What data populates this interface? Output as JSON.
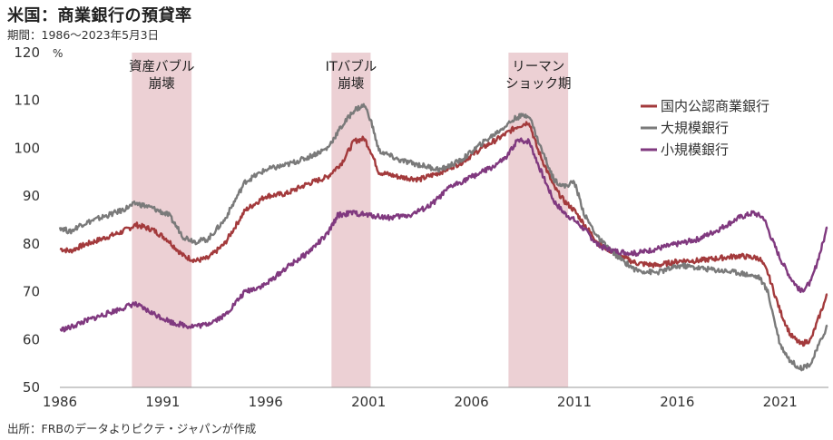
{
  "header": {
    "title": "米国：商業銀行の預貸率",
    "subtitle": "期間：1986～2023年5月3日",
    "source": "出所：FRBのデータよりピクテ・ジャパンが作成"
  },
  "chart_data": {
    "type": "line",
    "title": "米国：商業銀行の預貸率",
    "ylabel": "%",
    "xlim": [
      1986,
      2023.35
    ],
    "ylim": [
      50,
      120
    ],
    "yticks": [
      50,
      60,
      70,
      80,
      90,
      100,
      110,
      120
    ],
    "xticks": [
      1986,
      1991,
      1996,
      2001,
      2006,
      2011,
      2016,
      2021
    ],
    "grid": false,
    "legend_position": "right",
    "band_color": "#ecd0d4",
    "bands": [
      {
        "start": 1989.5,
        "end": 1992.4,
        "label_lines": [
          "資産バブル",
          "崩壊"
        ]
      },
      {
        "start": 1999.2,
        "end": 2001.1,
        "label_lines": [
          "ITバブル",
          "崩壊"
        ]
      },
      {
        "start": 2007.8,
        "end": 2010.7,
        "label_lines": [
          "リーマン",
          "ショック期"
        ]
      }
    ],
    "series": [
      {
        "name": "国内公認商業銀行",
        "color": "#a33a3c",
        "points": [
          [
            1986,
            79
          ],
          [
            1986.5,
            78.5
          ],
          [
            1987,
            79.5
          ],
          [
            1988,
            81
          ],
          [
            1989,
            82.5
          ],
          [
            1989.7,
            84
          ],
          [
            1990.5,
            83
          ],
          [
            1991.2,
            81
          ],
          [
            1992,
            77.5
          ],
          [
            1992.6,
            76.5
          ],
          [
            1993.2,
            77
          ],
          [
            1994,
            80
          ],
          [
            1995,
            87
          ],
          [
            1996,
            90
          ],
          [
            1997,
            90.5
          ],
          [
            1998,
            92.5
          ],
          [
            1999,
            94
          ],
          [
            1999.7,
            97
          ],
          [
            2000.3,
            101.5
          ],
          [
            2000.8,
            102
          ],
          [
            2001.1,
            99.5
          ],
          [
            2001.5,
            95
          ],
          [
            2002.5,
            94
          ],
          [
            2003.5,
            93.5
          ],
          [
            2004.5,
            95
          ],
          [
            2005.5,
            97
          ],
          [
            2006.5,
            100
          ],
          [
            2007.3,
            102
          ],
          [
            2008.2,
            104.5
          ],
          [
            2008.8,
            105.5
          ],
          [
            2009.2,
            100
          ],
          [
            2010,
            92
          ],
          [
            2010.5,
            89
          ],
          [
            2011,
            87
          ],
          [
            2011.5,
            84
          ],
          [
            2012.2,
            80
          ],
          [
            2013.2,
            77.5
          ],
          [
            2014,
            76
          ],
          [
            2015,
            75.5
          ],
          [
            2016.2,
            76.5
          ],
          [
            2017,
            76.5
          ],
          [
            2018,
            77
          ],
          [
            2019,
            77.5
          ],
          [
            2020,
            77
          ],
          [
            2020.4,
            74
          ],
          [
            2021,
            66
          ],
          [
            2021.5,
            61
          ],
          [
            2022,
            59
          ],
          [
            2022.5,
            60
          ],
          [
            2023,
            66
          ],
          [
            2023.3,
            69.5
          ]
        ]
      },
      {
        "name": "大規模銀行",
        "color": "#7a7a7a",
        "points": [
          [
            1986,
            83.5
          ],
          [
            1986.5,
            82.5
          ],
          [
            1987,
            84
          ],
          [
            1988,
            85.5
          ],
          [
            1989,
            87
          ],
          [
            1989.7,
            88.5
          ],
          [
            1990.5,
            87.5
          ],
          [
            1991.3,
            86
          ],
          [
            1992,
            81.5
          ],
          [
            1992.6,
            80.5
          ],
          [
            1993.2,
            81
          ],
          [
            1994,
            85
          ],
          [
            1995,
            93
          ],
          [
            1996,
            95.5
          ],
          [
            1997,
            96.5
          ],
          [
            1998,
            98
          ],
          [
            1999,
            100
          ],
          [
            1999.6,
            104
          ],
          [
            2000.3,
            108
          ],
          [
            2000.8,
            109
          ],
          [
            2001.1,
            106
          ],
          [
            2001.5,
            99.5
          ],
          [
            2002.5,
            97.5
          ],
          [
            2003.5,
            96.5
          ],
          [
            2004.5,
            95.5
          ],
          [
            2005.5,
            97.5
          ],
          [
            2006.5,
            101
          ],
          [
            2007.3,
            103.5
          ],
          [
            2008.2,
            106.5
          ],
          [
            2008.8,
            107
          ],
          [
            2009.2,
            102
          ],
          [
            2010,
            93.5
          ],
          [
            2010.5,
            92
          ],
          [
            2011,
            93
          ],
          [
            2011.5,
            86
          ],
          [
            2012.2,
            81
          ],
          [
            2013.2,
            77
          ],
          [
            2014,
            74.5
          ],
          [
            2015,
            74
          ],
          [
            2016.2,
            75.5
          ],
          [
            2017,
            75
          ],
          [
            2018,
            74.5
          ],
          [
            2019,
            74
          ],
          [
            2020,
            73
          ],
          [
            2020.4,
            70
          ],
          [
            2021,
            59
          ],
          [
            2021.5,
            55.5
          ],
          [
            2022,
            54
          ],
          [
            2022.5,
            55
          ],
          [
            2023,
            60
          ],
          [
            2023.3,
            63
          ]
        ]
      },
      {
        "name": "小規模銀行",
        "color": "#80397f",
        "points": [
          [
            1986,
            62
          ],
          [
            1986.5,
            62.5
          ],
          [
            1987,
            63.5
          ],
          [
            1988,
            65
          ],
          [
            1989,
            66.5
          ],
          [
            1989.6,
            67.5
          ],
          [
            1990.5,
            65.5
          ],
          [
            1991.5,
            63.5
          ],
          [
            1992.3,
            62.8
          ],
          [
            1993,
            63
          ],
          [
            1994,
            65
          ],
          [
            1995,
            70
          ],
          [
            1996,
            71.5
          ],
          [
            1997,
            75
          ],
          [
            1998,
            78
          ],
          [
            1999,
            82
          ],
          [
            1999.5,
            86
          ],
          [
            2000.2,
            86.5
          ],
          [
            2001,
            86
          ],
          [
            2002,
            85.5
          ],
          [
            2003,
            86
          ],
          [
            2004,
            88
          ],
          [
            2005,
            92
          ],
          [
            2006,
            94
          ],
          [
            2007,
            96
          ],
          [
            2007.7,
            98
          ],
          [
            2008.2,
            101.5
          ],
          [
            2008.8,
            101.5
          ],
          [
            2009.3,
            96
          ],
          [
            2010,
            89
          ],
          [
            2010.5,
            86.5
          ],
          [
            2011,
            85
          ],
          [
            2011.5,
            83
          ],
          [
            2012.2,
            79.5
          ],
          [
            2013,
            78.5
          ],
          [
            2014,
            78
          ],
          [
            2015,
            79
          ],
          [
            2016,
            80
          ],
          [
            2017,
            81
          ],
          [
            2018,
            83
          ],
          [
            2019,
            85.5
          ],
          [
            2019.7,
            86.5
          ],
          [
            2020.2,
            85.5
          ],
          [
            2020.6,
            81
          ],
          [
            2021,
            77
          ],
          [
            2021.5,
            73
          ],
          [
            2022,
            70
          ],
          [
            2022.5,
            72
          ],
          [
            2023,
            79
          ],
          [
            2023.3,
            83.5
          ]
        ]
      }
    ]
  }
}
